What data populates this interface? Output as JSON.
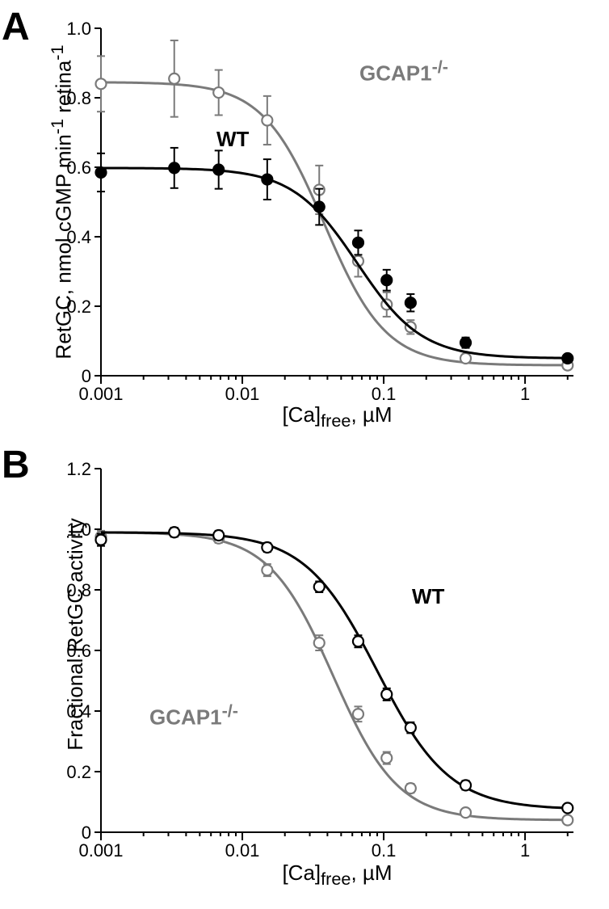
{
  "background_color": "#ffffff",
  "panelA": {
    "type": "line-scatter-errorbar",
    "letter": "A",
    "letter_fontsize": 48,
    "y_label_line1": "RetGC, nmol cGMP min",
    "y_label_sup1": "-1",
    "y_label_line2": " retina",
    "y_label_sup2": "-1",
    "x_label": "[Ca]",
    "x_label_sub": "free",
    "x_label_tail": ", µM",
    "label_fontsize": 26,
    "tick_fontsize": 22,
    "xscale": "log",
    "xlim": [
      0.001,
      2.2
    ],
    "ylim": [
      0,
      1.0
    ],
    "ytick_step": 0.2,
    "x_tick_labels": [
      "0.001",
      "0.01",
      "0.1",
      "1"
    ],
    "x_tick_values": [
      0.001,
      0.01,
      0.1,
      1
    ],
    "line_width": 3,
    "marker_size": 6.5,
    "errorbar_width": 2,
    "series": {
      "wt": {
        "label": "WT",
        "color": "#000000",
        "marker_fill": "#000000",
        "marker_style": "circle",
        "data": [
          {
            "x": 0.001,
            "y": 0.585,
            "err": 0.055
          },
          {
            "x": 0.0033,
            "y": 0.598,
            "err": 0.058
          },
          {
            "x": 0.0068,
            "y": 0.593,
            "err": 0.055
          },
          {
            "x": 0.015,
            "y": 0.565,
            "err": 0.058
          },
          {
            "x": 0.035,
            "y": 0.486,
            "err": 0.052
          },
          {
            "x": 0.066,
            "y": 0.383,
            "err": 0.035
          },
          {
            "x": 0.105,
            "y": 0.275,
            "err": 0.03
          },
          {
            "x": 0.155,
            "y": 0.21,
            "err": 0.025
          },
          {
            "x": 0.38,
            "y": 0.095,
            "err": 0.015
          },
          {
            "x": 2.0,
            "y": 0.05,
            "err": 0.01
          }
        ],
        "curve_plateau_top": 0.598,
        "curve_bottom": 0.05,
        "curve_ec50": 0.065,
        "curve_hill": 1.9
      },
      "gcap": {
        "label_prefix": "GCAP1",
        "label_sup": "-/-",
        "color": "#7a7a7a",
        "marker_fill": "#ffffff",
        "marker_style": "circle",
        "data": [
          {
            "x": 0.001,
            "y": 0.84,
            "err": 0.08
          },
          {
            "x": 0.0033,
            "y": 0.855,
            "err": 0.11
          },
          {
            "x": 0.0068,
            "y": 0.815,
            "err": 0.065
          },
          {
            "x": 0.015,
            "y": 0.735,
            "err": 0.07
          },
          {
            "x": 0.035,
            "y": 0.535,
            "err": 0.07
          },
          {
            "x": 0.066,
            "y": 0.33,
            "err": 0.045
          },
          {
            "x": 0.105,
            "y": 0.205,
            "err": 0.035
          },
          {
            "x": 0.155,
            "y": 0.14,
            "err": 0.02
          },
          {
            "x": 0.38,
            "y": 0.05,
            "err": 0.012
          },
          {
            "x": 2.0,
            "y": 0.03,
            "err": 0.01
          }
        ],
        "curve_plateau_top": 0.845,
        "curve_bottom": 0.03,
        "curve_ec50": 0.038,
        "curve_hill": 2.0
      }
    }
  },
  "panelB": {
    "type": "line-scatter-errorbar",
    "letter": "B",
    "letter_fontsize": 48,
    "y_label": "Fractional RetGC activity",
    "x_label": "[Ca]",
    "x_label_sub": "free",
    "x_label_tail": ", µM",
    "label_fontsize": 26,
    "tick_fontsize": 22,
    "xscale": "log",
    "xlim": [
      0.001,
      2.2
    ],
    "ylim": [
      0,
      1.2
    ],
    "ytick_step": 0.2,
    "x_tick_labels": [
      "0.001",
      "0.01",
      "0.1",
      "1"
    ],
    "x_tick_values": [
      0.001,
      0.01,
      0.1,
      1
    ],
    "line_width": 3,
    "marker_size": 6.5,
    "errorbar_width": 2,
    "series": {
      "wt": {
        "label": "WT",
        "color": "#000000",
        "marker_fill": "#ffffff",
        "marker_style": "circle",
        "data": [
          {
            "x": 0.001,
            "y": 0.965,
            "err": 0.02
          },
          {
            "x": 0.0033,
            "y": 0.99,
            "err": 0.015
          },
          {
            "x": 0.0068,
            "y": 0.98,
            "err": 0.015
          },
          {
            "x": 0.015,
            "y": 0.94,
            "err": 0.015
          },
          {
            "x": 0.035,
            "y": 0.81,
            "err": 0.018
          },
          {
            "x": 0.066,
            "y": 0.63,
            "err": 0.02
          },
          {
            "x": 0.105,
            "y": 0.455,
            "err": 0.02
          },
          {
            "x": 0.155,
            "y": 0.345,
            "err": 0.018
          },
          {
            "x": 0.38,
            "y": 0.155,
            "err": 0.015
          },
          {
            "x": 2.0,
            "y": 0.08,
            "err": 0.01
          }
        ],
        "curve_plateau_top": 0.99,
        "curve_bottom": 0.075,
        "curve_ec50": 0.09,
        "curve_hill": 1.7
      },
      "gcap": {
        "label_prefix": "GCAP1",
        "label_sup": "-/-",
        "color": "#7a7a7a",
        "marker_fill": "#ffffff",
        "marker_style": "circle",
        "data": [
          {
            "x": 0.001,
            "y": 0.975,
            "err": 0.02
          },
          {
            "x": 0.0033,
            "y": 0.99,
            "err": 0.015
          },
          {
            "x": 0.0068,
            "y": 0.97,
            "err": 0.015
          },
          {
            "x": 0.015,
            "y": 0.865,
            "err": 0.02
          },
          {
            "x": 0.035,
            "y": 0.625,
            "err": 0.025
          },
          {
            "x": 0.066,
            "y": 0.39,
            "err": 0.025
          },
          {
            "x": 0.105,
            "y": 0.245,
            "err": 0.02
          },
          {
            "x": 0.155,
            "y": 0.145,
            "err": 0.015
          },
          {
            "x": 0.38,
            "y": 0.065,
            "err": 0.012
          },
          {
            "x": 2.0,
            "y": 0.04,
            "err": 0.01
          }
        ],
        "curve_plateau_top": 0.99,
        "curve_bottom": 0.04,
        "curve_ec50": 0.044,
        "curve_hill": 1.9
      }
    }
  }
}
